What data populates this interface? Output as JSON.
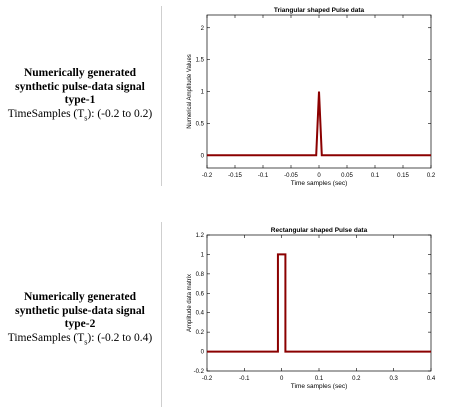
{
  "captions": [
    {
      "line1": "Numerically generated",
      "line2": "synthetic pulse-data signal",
      "line3": "type-1",
      "line4_prefix": "TimeSamples (T",
      "line4_sub": "s",
      "line4_suffix": "): (-0.2 to 0.2)"
    },
    {
      "line1": "Numerically generated",
      "line2": "synthetic pulse-data signal",
      "line3": "type-2",
      "line4_prefix": "TimeSamples (T",
      "line4_sub": "s",
      "line4_suffix": "): (-0.2 to 0.4)"
    }
  ],
  "colors": {
    "series": "#8b0000",
    "axis": "#000000"
  },
  "chart_data": [
    {
      "type": "line",
      "title": "Triangular shaped Pulse data",
      "xlabel": "Time samples (sec)",
      "ylabel": "Numerical Amplitude Values",
      "xlim": [
        -0.2,
        0.2
      ],
      "ylim": [
        -0.2,
        2.2
      ],
      "xticks": [
        -0.2,
        -0.15,
        -0.1,
        -0.05,
        0,
        0.05,
        0.1,
        0.15,
        0.2
      ],
      "xtick_labels": [
        "-0.2",
        "-0.15",
        "-0.1",
        "-0.05",
        "0",
        "0.05",
        "0.1",
        "0.15",
        "0.2"
      ],
      "yticks": [
        0,
        0.5,
        1,
        1.5,
        2
      ],
      "ytick_labels": [
        "0",
        "0.5",
        "1",
        "1.5",
        "2"
      ],
      "grid": false,
      "series": [
        {
          "x": [
            -0.2,
            -0.005,
            0,
            0.005,
            0.2
          ],
          "y": [
            0,
            0,
            1,
            0,
            0
          ]
        }
      ]
    },
    {
      "type": "line",
      "title": "Rectangular shaped Pulse data",
      "xlabel": "Time samples  (sec)",
      "ylabel": "Amplitude data matrix",
      "xlim": [
        -0.2,
        0.4
      ],
      "ylim": [
        -0.2,
        1.2
      ],
      "xticks": [
        -0.2,
        -0.1,
        0,
        0.1,
        0.2,
        0.3,
        0.4
      ],
      "xtick_labels": [
        "-0.2",
        "-0.1",
        "0",
        "0.1",
        "0.2",
        "0.3",
        "0.4"
      ],
      "yticks": [
        -0.2,
        0,
        0.2,
        0.4,
        0.6,
        0.8,
        1,
        1.2
      ],
      "ytick_labels": [
        "-0.2",
        "0",
        "0.2",
        "0.4",
        "0.6",
        "0.8",
        "1",
        "1.2"
      ],
      "grid": false,
      "series": [
        {
          "x": [
            -0.2,
            -0.01,
            -0.01,
            0.01,
            0.01,
            0.4
          ],
          "y": [
            0,
            0,
            1,
            1,
            0,
            0
          ]
        }
      ]
    }
  ]
}
